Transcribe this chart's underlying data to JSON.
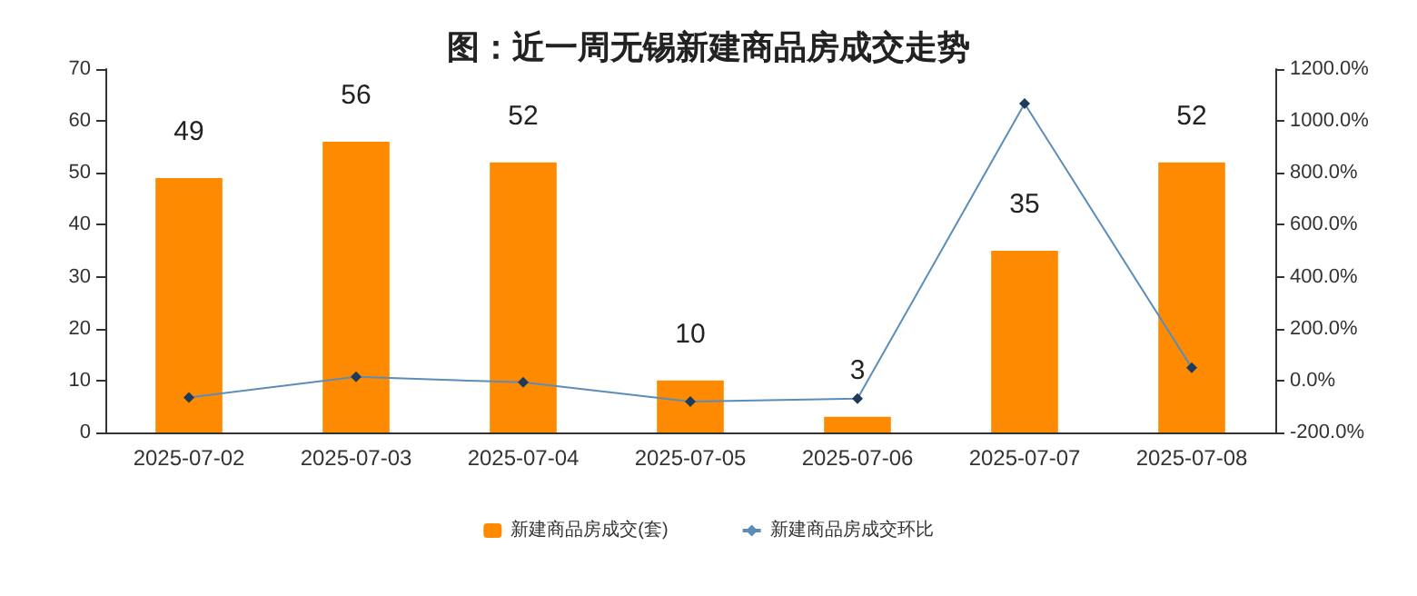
{
  "chart_data": {
    "type": "bar",
    "title": "图：近一周无锡新建商品房成交走势",
    "categories": [
      "2025-07-02",
      "2025-07-03",
      "2025-07-04",
      "2025-07-05",
      "2025-07-06",
      "2025-07-07",
      "2025-07-08"
    ],
    "series": [
      {
        "name": "新建商品房成交(套)",
        "color": "#fe8a01",
        "values": [
          49,
          56,
          52,
          10,
          3,
          35,
          52
        ],
        "value_labels": [
          "49",
          "56",
          "52",
          "10",
          "3",
          "35",
          "52"
        ]
      },
      {
        "name": "新建商品房成交环比",
        "type": "line",
        "axis": "y2",
        "color": "#5b8db8",
        "marker": "diamond",
        "line_style": "solid",
        "values": [
          -65,
          14,
          -7,
          -81,
          -70,
          1067,
          49
        ]
      }
    ],
    "ylim": [
      0,
      70
    ],
    "yticks": [
      0,
      10,
      20,
      30,
      40,
      50,
      60,
      70
    ],
    "y2lim": [
      -200,
      1200
    ],
    "y2ticks": [
      {
        "value": -200,
        "label": "-200.0%"
      },
      {
        "value": 0,
        "label": "0.0%"
      },
      {
        "value": 200,
        "label": "200.0%"
      },
      {
        "value": 400,
        "label": "400.0%"
      },
      {
        "value": 600,
        "label": "600.0%"
      },
      {
        "value": 800,
        "label": "800.0%"
      },
      {
        "value": 1000,
        "label": "1000.0%"
      },
      {
        "value": 1200,
        "label": "1200.0%"
      }
    ],
    "grid": false,
    "legend": "bottom"
  }
}
